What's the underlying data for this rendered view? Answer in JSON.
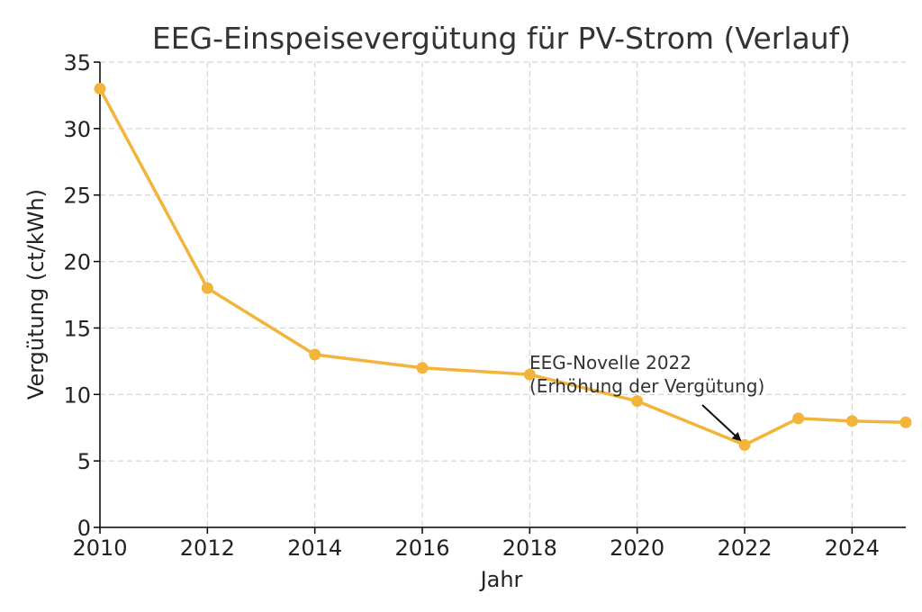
{
  "chart_data": {
    "type": "line",
    "title": "EEG-Einspeisevergütung für PV-Strom (Verlauf)",
    "xlabel": "Jahr",
    "ylabel": "Vergütung (ct/kWh)",
    "xlim": [
      2010,
      2025
    ],
    "ylim": [
      0,
      35
    ],
    "xticks": [
      2010,
      2012,
      2014,
      2016,
      2018,
      2020,
      2022,
      2024
    ],
    "yticks": [
      0,
      5,
      10,
      15,
      20,
      25,
      30,
      35
    ],
    "grid": true,
    "series": [
      {
        "color": "#f2b43a",
        "x": [
          2010,
          2012,
          2014,
          2016,
          2018,
          2020,
          2022,
          2023,
          2024,
          2025
        ],
        "y": [
          33,
          18,
          13,
          12,
          11.5,
          9.5,
          6.2,
          8.2,
          8.0,
          7.9
        ]
      }
    ],
    "annotation": {
      "line1": "EEG-Novelle 2022",
      "line2": "(Erhöhung der Vergütung)",
      "target_x": 2022,
      "target_y": 6.2
    }
  }
}
